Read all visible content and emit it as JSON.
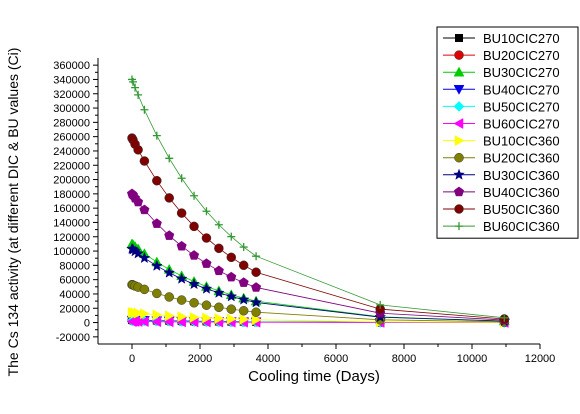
{
  "chart_data": {
    "type": "scatter",
    "title": "",
    "xlabel": "Cooling time (Days)",
    "ylabel": "The Cs 134 activity (at different DIC & BU values  (Ci)",
    "xlim": [
      -1000,
      12000
    ],
    "ylim": [
      -30000,
      370000
    ],
    "xticks": [
      0,
      2000,
      4000,
      6000,
      8000,
      10000,
      12000
    ],
    "yticks": [
      -20000,
      0,
      20000,
      40000,
      60000,
      80000,
      100000,
      120000,
      140000,
      160000,
      180000,
      200000,
      220000,
      240000,
      260000,
      280000,
      300000,
      320000,
      340000,
      360000
    ],
    "grid": false,
    "legend_position": "top-right",
    "x": [
      0,
      30,
      90,
      180,
      365,
      730,
      1095,
      1460,
      1825,
      2190,
      2555,
      2920,
      3285,
      3650,
      7300,
      10950
    ],
    "series": [
      {
        "name": "BU10CIC270",
        "color": "#000000",
        "marker": "square",
        "values": [
          3500,
          3470,
          3390,
          3290,
          3070,
          2700,
          2370,
          2080,
          1830,
          1610,
          1410,
          1240,
          1090,
          960,
          260,
          70
        ]
      },
      {
        "name": "BU20CIC270",
        "color": "#e00000",
        "marker": "circle",
        "values": [
          3000,
          2970,
          2900,
          2810,
          2630,
          2310,
          2030,
          1780,
          1570,
          1380,
          1210,
          1060,
          930,
          820,
          220,
          60
        ]
      },
      {
        "name": "BU30CIC270",
        "color": "#00cc00",
        "marker": "triangle-up",
        "values": [
          110000,
          108900,
          106300,
          103000,
          96300,
          84600,
          74300,
          65300,
          57400,
          50400,
          44300,
          38900,
          34200,
          30000,
          8000,
          2200
        ]
      },
      {
        "name": "BU40CIC270",
        "color": "#0000ee",
        "marker": "triangle-down",
        "values": [
          3500,
          3470,
          3390,
          3290,
          3070,
          2700,
          2370,
          2080,
          1830,
          1610,
          1410,
          1240,
          1090,
          960,
          260,
          70
        ]
      },
      {
        "name": "BU50CIC270",
        "color": "#00ffff",
        "marker": "diamond",
        "values": [
          2500,
          2480,
          2420,
          2340,
          2190,
          1920,
          1690,
          1490,
          1310,
          1150,
          1010,
          880,
          780,
          680,
          180,
          50
        ]
      },
      {
        "name": "BU60CIC270",
        "color": "#ff00ff",
        "marker": "triangle-left",
        "values": [
          1500,
          1490,
          1450,
          1410,
          1310,
          1150,
          1010,
          890,
          780,
          690,
          600,
          530,
          470,
          410,
          110,
          30
        ]
      },
      {
        "name": "BU10CIC360",
        "color": "#ffff00",
        "marker": "triangle-right",
        "values": [
          14000,
          13860,
          13530,
          13110,
          12260,
          10770,
          9460,
          8310,
          7300,
          6420,
          5640,
          4950,
          4350,
          3820,
          1020,
          280
        ]
      },
      {
        "name": "BU20CIC360",
        "color": "#808000",
        "marker": "circle",
        "values": [
          53000,
          52460,
          51230,
          49630,
          46400,
          40760,
          35810,
          31460,
          27640,
          24280,
          21330,
          18740,
          16470,
          14470,
          3860,
          1050
        ]
      },
      {
        "name": "BU30CIC360",
        "color": "#000080",
        "marker": "star",
        "values": [
          103000,
          101950,
          99550,
          96450,
          90180,
          79210,
          69590,
          61140,
          53710,
          47190,
          41450,
          36420,
          31990,
          28110,
          7500,
          2000
        ]
      },
      {
        "name": "BU40CIC360",
        "color": "#800080",
        "marker": "pentagon",
        "values": [
          180000,
          178200,
          174000,
          168600,
          157600,
          138400,
          121600,
          106800,
          93900,
          82500,
          72400,
          63600,
          55900,
          49100,
          13100,
          3500
        ]
      },
      {
        "name": "BU50CIC360",
        "color": "#800000",
        "marker": "circle",
        "values": [
          258000,
          255400,
          249400,
          241600,
          225900,
          198400,
          174300,
          153100,
          134500,
          118200,
          103800,
          91200,
          80100,
          70400,
          18800,
          5000
        ]
      },
      {
        "name": "BU60CIC360",
        "color": "#339933",
        "marker": "plus",
        "values": [
          340000,
          336600,
          328600,
          318400,
          297600,
          261400,
          229700,
          201800,
          177300,
          155700,
          136800,
          120200,
          105600,
          92800,
          24700,
          6600
        ]
      }
    ]
  }
}
